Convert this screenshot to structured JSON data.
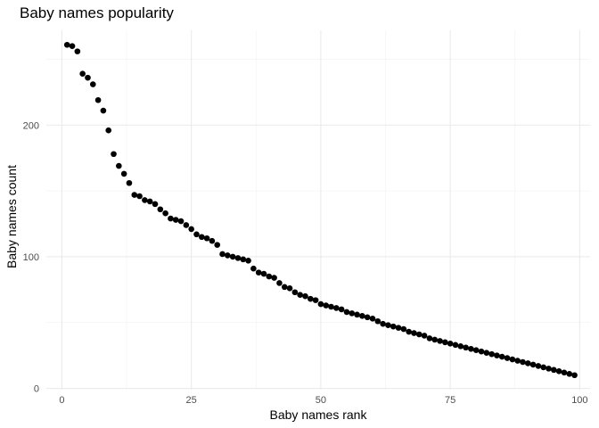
{
  "chart_data": {
    "type": "scatter",
    "title": "Baby names popularity",
    "xlabel": "Baby names rank",
    "ylabel": "Baby names count",
    "xlim": [
      -3,
      102
    ],
    "ylim": [
      -1,
      272
    ],
    "x_ticks": [
      0,
      25,
      50,
      75,
      100
    ],
    "x_tick_labels": [
      "0",
      "25",
      "50",
      "75",
      "100"
    ],
    "y_ticks": [
      0,
      100,
      200
    ],
    "y_tick_labels": [
      "0",
      "100",
      "200"
    ],
    "grid": true,
    "legend": "none",
    "point_color": "#000000",
    "x": [
      1,
      2,
      3,
      4,
      5,
      6,
      7,
      8,
      9,
      10,
      11,
      12,
      13,
      14,
      15,
      16,
      17,
      18,
      19,
      20,
      21,
      22,
      23,
      24,
      25,
      26,
      27,
      28,
      29,
      30,
      31,
      32,
      33,
      34,
      35,
      36,
      37,
      38,
      39,
      40,
      41,
      42,
      43,
      44,
      45,
      46,
      47,
      48,
      49,
      50,
      51,
      52,
      53,
      54,
      55,
      56,
      57,
      58,
      59,
      60,
      61,
      62,
      63,
      64,
      65,
      66,
      67,
      68,
      69,
      70,
      71,
      72,
      73,
      74,
      75,
      76,
      77,
      78,
      79,
      80,
      81,
      82,
      83,
      84,
      85,
      86,
      87,
      88,
      89,
      90,
      91,
      92,
      93,
      94,
      95,
      96,
      97,
      98,
      99
    ],
    "y": [
      261,
      260,
      256,
      239,
      236,
      231,
      219,
      211,
      196,
      178,
      169,
      163,
      156,
      147,
      146,
      143,
      142,
      140,
      136,
      133,
      129,
      128,
      127,
      124,
      121,
      117,
      115,
      114,
      112,
      109,
      102,
      101,
      100,
      99,
      98,
      97,
      91,
      88,
      87,
      85,
      84,
      80,
      77,
      76,
      73,
      71,
      70,
      68,
      67,
      64,
      63,
      62,
      61,
      60,
      58,
      57,
      56,
      55,
      54,
      53,
      51,
      49,
      48,
      47,
      46,
      45,
      43,
      42,
      41,
      40,
      38,
      37,
      36,
      35,
      34,
      33,
      32,
      31,
      30,
      29,
      28,
      27,
      26,
      25,
      24,
      23,
      22,
      21,
      20,
      19,
      18,
      17,
      16,
      15,
      14,
      13,
      12,
      11,
      10
    ]
  }
}
